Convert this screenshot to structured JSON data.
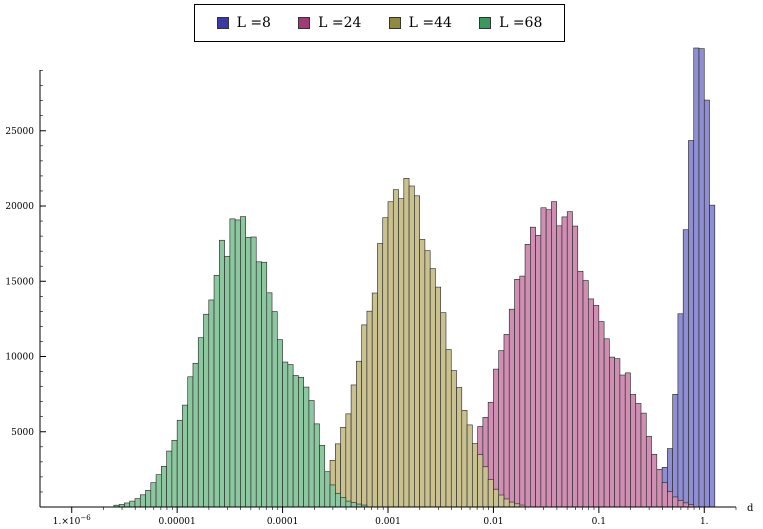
{
  "chart_data": {
    "type": "bar",
    "title": "",
    "xlabel": "d",
    "ylabel": "",
    "x_scale": "log",
    "xlim": [
      5e-07,
      2.0
    ],
    "ylim": [
      0,
      30500
    ],
    "grid": false,
    "legend_placement": "top",
    "x_ticks": [
      {
        "value": 1e-06,
        "label": "1.×10",
        "sup": "−6"
      },
      {
        "value": 1e-05,
        "label": "0.00001"
      },
      {
        "value": 0.0001,
        "label": "0.0001"
      },
      {
        "value": 0.001,
        "label": "0.001"
      },
      {
        "value": 0.01,
        "label": "0.01"
      },
      {
        "value": 0.1,
        "label": "0.1"
      },
      {
        "value": 1,
        "label": "1."
      }
    ],
    "y_ticks": [
      {
        "value": 5000,
        "label": "5000"
      },
      {
        "value": 10000,
        "label": "10000"
      },
      {
        "value": 15000,
        "label": "15000"
      },
      {
        "value": 20000,
        "label": "20000"
      },
      {
        "value": 25000,
        "label": "25000"
      }
    ],
    "series": [
      {
        "name": "L =8",
        "color": "#8e8ed0",
        "mu": 0.9,
        "sigma": 0.13,
        "peak": 30500,
        "cap_at": 1.25,
        "secondary": {
          "mu": 0.4,
          "sigma": 0.12,
          "peak": 1300
        }
      },
      {
        "name": "L =24",
        "color": "#cf8fb2",
        "mu": 0.037,
        "sigma": 0.42,
        "peak": 20000,
        "secondary": {
          "mu": 0.22,
          "sigma": 0.16,
          "peak": 4000
        }
      },
      {
        "name": "L =44",
        "color": "#c9c18f",
        "mu": 0.00145,
        "sigma": 0.35,
        "peak": 21000,
        "secondary": {
          "mu": 0.0065,
          "sigma": 0.12,
          "peak": 1000
        }
      },
      {
        "name": "L =68",
        "color": "#8cc79f",
        "mu": 4e-05,
        "sigma": 0.37,
        "peak": 18800,
        "secondary": {
          "mu": 0.00018,
          "sigma": 0.1,
          "peak": 3800
        }
      }
    ]
  },
  "legend": {
    "items": [
      {
        "label": "L =8",
        "color": "#3a3aa6"
      },
      {
        "label": "L =24",
        "color": "#a23a78"
      },
      {
        "label": "L =44",
        "color": "#8f8a3e"
      },
      {
        "label": "L =68",
        "color": "#3a9a5d"
      }
    ]
  }
}
